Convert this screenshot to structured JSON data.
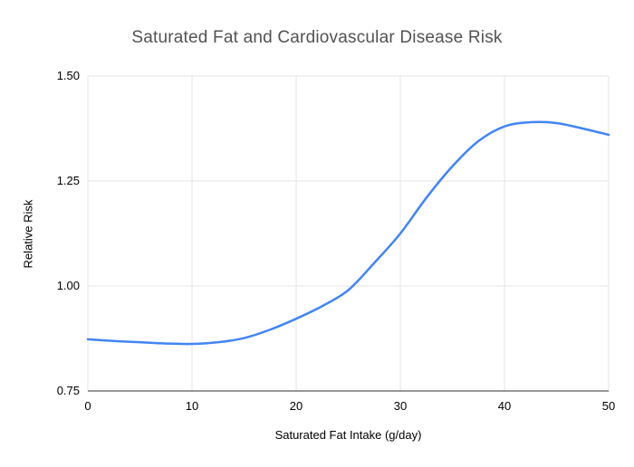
{
  "chart_data": {
    "type": "line",
    "title": "Saturated Fat and Cardiovascular Disease Risk",
    "xlabel": "Saturated Fat Intake (g/day)",
    "ylabel": "Relative Risk",
    "xlim": [
      0,
      50
    ],
    "ylim": [
      0.75,
      1.5
    ],
    "grid": true,
    "legend": "none",
    "x_ticks": [
      {
        "value": 0,
        "label": "0"
      },
      {
        "value": 10,
        "label": "10"
      },
      {
        "value": 20,
        "label": "20"
      },
      {
        "value": 30,
        "label": "30"
      },
      {
        "value": 40,
        "label": "40"
      },
      {
        "value": 50,
        "label": "50"
      }
    ],
    "y_ticks": [
      {
        "value": 0.75,
        "label": "0.75"
      },
      {
        "value": 1.0,
        "label": "1.00"
      },
      {
        "value": 1.25,
        "label": "1.25"
      },
      {
        "value": 1.5,
        "label": "1.50"
      }
    ],
    "colors": {
      "line": "#4285f4",
      "grid": "#e6e6e6",
      "axis_baseline": "#333333",
      "background": "#ffffff"
    },
    "series": [
      {
        "name": "Relative Risk",
        "x": [
          0,
          2.5,
          5,
          7.5,
          10,
          12.5,
          15,
          17.5,
          20,
          22.5,
          25,
          27.5,
          30,
          32.5,
          35,
          37.5,
          40,
          42.5,
          45,
          47.5,
          50
        ],
        "y": [
          0.873,
          0.869,
          0.866,
          0.863,
          0.862,
          0.866,
          0.876,
          0.896,
          0.922,
          0.952,
          0.99,
          1.055,
          1.125,
          1.21,
          1.285,
          1.345,
          1.38,
          1.39,
          1.388,
          1.375,
          1.36
        ]
      }
    ]
  }
}
